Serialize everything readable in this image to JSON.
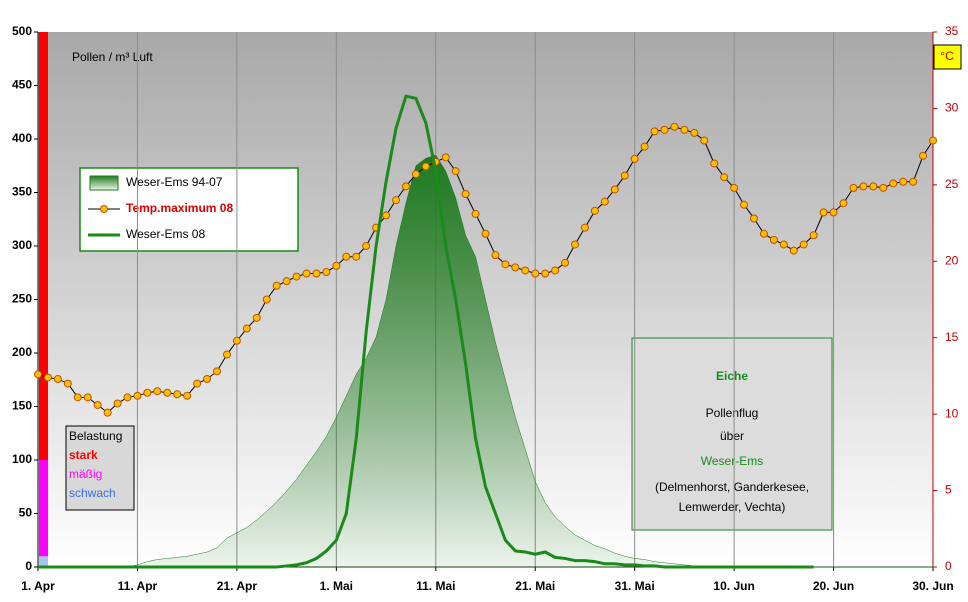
{
  "chart_data": {
    "type": "line",
    "y_label": "Pollen / m³  Luft",
    "y2_label": "°C",
    "x": [
      0,
      1,
      2,
      3,
      4,
      5,
      6,
      7,
      8,
      9,
      10,
      11,
      12,
      13,
      14,
      15,
      16,
      17,
      18,
      19,
      20,
      21,
      22,
      23,
      24,
      25,
      26,
      27,
      28,
      29,
      30,
      31,
      32,
      33,
      34,
      35,
      36,
      37,
      38,
      39,
      40,
      41,
      42,
      43,
      44,
      45,
      46,
      47,
      48,
      49,
      50,
      51,
      52,
      53,
      54,
      55,
      56,
      57,
      58,
      59,
      60,
      61,
      62,
      63,
      64,
      65,
      66,
      67,
      68,
      69,
      70,
      71,
      72,
      73,
      74,
      75,
      76,
      77,
      78,
      79,
      80,
      81,
      82,
      83,
      84,
      85,
      86,
      87,
      88,
      89,
      90
    ],
    "xlim": [
      0,
      90
    ],
    "xticks": [
      {
        "value": 0,
        "label": "1. Apr"
      },
      {
        "value": 10,
        "label": "11. Apr"
      },
      {
        "value": 20,
        "label": "21. Apr"
      },
      {
        "value": 30,
        "label": "1. Mai"
      },
      {
        "value": 40,
        "label": "11. Mai"
      },
      {
        "value": 50,
        "label": "21. Mai"
      },
      {
        "value": 60,
        "label": "31. Mai"
      },
      {
        "value": 70,
        "label": "10. Jun"
      },
      {
        "value": 80,
        "label": "20. Jun"
      },
      {
        "value": 90,
        "label": "30. Jun"
      }
    ],
    "ylim": [
      0,
      500
    ],
    "yticks": [
      0,
      50,
      100,
      150,
      200,
      250,
      300,
      350,
      400,
      450,
      500
    ],
    "y2lim": [
      0,
      35
    ],
    "y2ticks": [
      0,
      5,
      10,
      15,
      20,
      25,
      30,
      35
    ],
    "grid": "x",
    "series": [
      {
        "name": "Weser-Ems 94-07",
        "type": "area",
        "color": "#1e7a1e",
        "values": [
          0,
          0,
          0,
          0,
          0,
          0,
          0,
          0,
          0,
          0,
          2,
          5,
          7,
          8,
          9,
          10,
          12,
          14,
          18,
          27,
          32,
          37,
          44,
          52,
          61,
          71,
          82,
          95,
          108,
          122,
          140,
          160,
          180,
          195,
          215,
          250,
          300,
          340,
          375,
          382,
          385,
          370,
          345,
          310,
          290,
          250,
          210,
          175,
          140,
          110,
          80,
          60,
          47,
          38,
          30,
          25,
          20,
          17,
          13,
          10,
          8,
          7,
          5,
          4,
          3,
          2,
          1,
          0,
          0,
          0,
          0,
          0,
          0,
          0,
          0,
          0,
          0,
          0,
          0,
          0,
          0,
          0,
          0,
          0,
          0,
          0,
          0,
          0,
          0,
          0,
          0
        ]
      },
      {
        "name": "Temp.maximum 08",
        "type": "line",
        "axis": "y2",
        "color": "#ffc000",
        "values": [
          12.6,
          12.4,
          12.3,
          12.0,
          11.1,
          11.1,
          10.6,
          10.1,
          10.7,
          11.1,
          11.2,
          11.4,
          11.5,
          11.4,
          11.3,
          11.2,
          12.0,
          12.3,
          12.8,
          13.9,
          14.8,
          15.6,
          16.3,
          17.5,
          18.4,
          18.7,
          19.0,
          19.2,
          19.2,
          19.3,
          19.7,
          20.3,
          20.3,
          21.0,
          22.2,
          23.0,
          24.0,
          24.9,
          25.7,
          26.2,
          26.5,
          26.8,
          25.9,
          24.4,
          23.1,
          21.8,
          20.4,
          19.8,
          19.6,
          19.4,
          19.2,
          19.2,
          19.4,
          19.9,
          21.1,
          22.2,
          23.3,
          23.9,
          24.7,
          25.6,
          26.7,
          27.5,
          28.5,
          28.6,
          28.8,
          28.6,
          28.4,
          27.9,
          26.4,
          25.5,
          24.8,
          23.7,
          22.8,
          21.8,
          21.4,
          21.1,
          20.7,
          21.1,
          21.7,
          23.2,
          23.2,
          23.8,
          24.8,
          24.9,
          24.9,
          24.8,
          25.1,
          25.2,
          25.2,
          26.9,
          27.9
        ]
      },
      {
        "name": "Weser-Ems 08",
        "type": "line",
        "color": "#1a8a1a",
        "values": [
          0,
          0,
          0,
          0,
          0,
          0,
          0,
          0,
          0,
          0,
          0,
          0,
          0,
          0,
          0,
          0,
          0,
          0,
          0,
          0,
          0,
          0,
          0,
          0,
          0,
          1,
          2,
          4,
          8,
          15,
          25,
          50,
          120,
          220,
          300,
          360,
          410,
          440,
          438,
          415,
          370,
          300,
          250,
          190,
          120,
          75,
          50,
          25,
          15,
          14,
          12,
          14,
          9,
          8,
          6,
          6,
          5,
          3,
          3,
          2,
          2,
          1,
          1,
          0,
          0,
          0,
          0,
          0,
          0,
          0,
          0,
          0,
          0,
          0,
          0,
          0,
          0,
          0,
          0,
          null,
          null,
          null,
          null,
          null,
          null,
          null,
          null,
          null,
          null,
          null,
          null
        ]
      }
    ],
    "load_scale": {
      "title": "Belastung",
      "levels": [
        {
          "name": "schwach",
          "color": "#9ec8f0",
          "value": 10
        },
        {
          "name": "mäßig",
          "color": "#ff00ff",
          "value": 90
        },
        {
          "name": "stark",
          "color": "#ff0000",
          "value": 400
        }
      ]
    },
    "info_box": {
      "title": "Eiche",
      "lines": [
        "Pollenflug",
        "über",
        "Weser-Ems",
        "(Delmenhorst, Ganderkesee,",
        "Lemwerder, Vechta)"
      ]
    }
  }
}
